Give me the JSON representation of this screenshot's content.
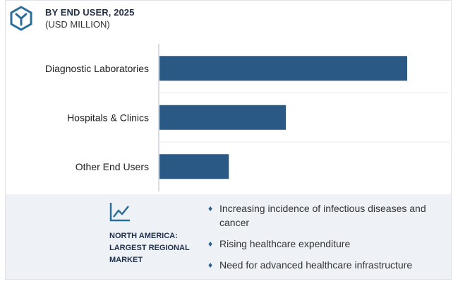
{
  "header": {
    "title": "BY END USER, 2025",
    "subtitle": "(USD MILLION)",
    "logo_icon": "hexagon-y-logo-icon"
  },
  "colors": {
    "bar": "#2b5985",
    "accent": "#2c5d8f",
    "panel_bg": "#eef2f6",
    "axis": "#b5bcc4"
  },
  "chart_data": {
    "type": "bar",
    "orientation": "horizontal",
    "categories": [
      "Diagnostic Laboratories",
      "Hospitals & Clinics",
      "Other End Users"
    ],
    "values": [
      100,
      51,
      28
    ],
    "title": "BY END USER, 2025",
    "subtitle": "(USD MILLION)",
    "xlabel": "",
    "ylabel": "",
    "xlim": [
      0,
      100
    ],
    "grid": true,
    "legend": "none"
  },
  "panel": {
    "trend_icon": "line-chart-icon",
    "region_label": "NORTH AMERICA: LARGEST REGIONAL MARKET",
    "bullets": [
      "Increasing incidence of infectious diseases and cancer",
      "Rising healthcare expenditure",
      "Need for advanced healthcare infrastructure"
    ]
  }
}
